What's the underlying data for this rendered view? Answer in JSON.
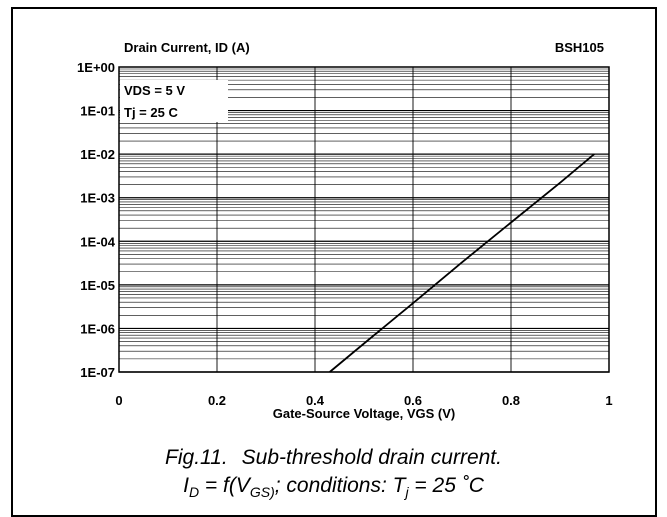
{
  "chart_data": {
    "type": "line",
    "title": "Drain Current, ID (A)",
    "device": "BSH105",
    "xlabel": "Gate-Source Voltage, VGS (V)",
    "ylabel": "Drain Current, ID (A)",
    "y_scale": "log",
    "xlim": [
      0,
      1
    ],
    "ylim": [
      1e-07,
      1
    ],
    "x_ticks": [
      "0",
      "0.2",
      "0.4",
      "0.6",
      "0.8",
      "1"
    ],
    "y_ticks": [
      "1E+00",
      "1E-01",
      "1E-02",
      "1E-03",
      "1E-04",
      "1E-05",
      "1E-06",
      "1E-07"
    ],
    "annotations": [
      "VDS = 5 V",
      "Tj = 25 C"
    ],
    "grid": true,
    "series": [
      {
        "x": [
          0.43,
          0.5,
          0.6,
          0.7,
          0.8,
          0.9,
          0.97
        ],
        "y": [
          1e-07,
          4.5e-07,
          3.8e-06,
          3.3e-05,
          0.00027,
          0.0022,
          0.01
        ]
      }
    ]
  },
  "caption": {
    "fig_label": "Fig.11.",
    "fig_title": "Sub-threshold drain current.",
    "line2_a": "I",
    "line2_a_sub": "D",
    "line2_b": " = f(V",
    "line2_b_sub": "GS)",
    "line2_c": "; conditions: T",
    "line2_c_sub": "j",
    "line2_d": " = 25 ˚C"
  }
}
